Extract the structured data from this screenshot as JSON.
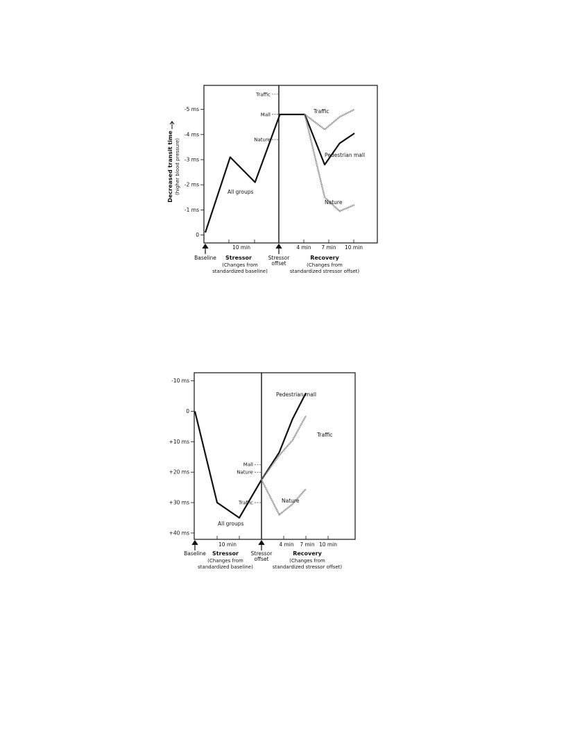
{
  "chart_data": [
    {
      "type": "line",
      "ylabel": "Decreased transit time",
      "ylabel_sub": "(higher blood pressure)",
      "yticks": [
        "-5 ms",
        "-4 ms",
        "-3 ms",
        "-2 ms",
        "-1 ms",
        "0"
      ],
      "ytick_values": [
        5,
        4,
        3,
        2,
        1,
        0
      ],
      "ylim": [
        0,
        6
      ],
      "xticks": [
        "10 min",
        "4 min",
        "7 min",
        "10 min"
      ],
      "phase_labels": {
        "baseline": "Baseline",
        "stressor": "Stressor",
        "stressor_sub1": "(Changes from",
        "stressor_sub2": "standardized baseline)",
        "offset1": "Stressor",
        "offset2": "offset",
        "recovery": "Recovery",
        "recovery_sub1": "(Changes from",
        "recovery_sub2": "standardized stressor offset)"
      },
      "offset_markers": [
        {
          "label": "Traffic",
          "value": 5.6
        },
        {
          "label": "Mall",
          "value": 4.8
        },
        {
          "label": "Nature",
          "value": 3.8
        }
      ],
      "stressor_series": {
        "name": "All groups",
        "x": [
          0,
          5,
          10,
          15,
          20
        ],
        "y": [
          0.1,
          3.1,
          2.1,
          4.8,
          4.8
        ]
      },
      "series": [
        {
          "name": "Traffic",
          "x": [
            20,
            24,
            27,
            30
          ],
          "y": [
            4.8,
            4.2,
            4.7,
            5.0
          ],
          "color": "#808080"
        },
        {
          "name": "Pedestrian mall",
          "x": [
            20,
            24,
            27,
            30
          ],
          "y": [
            4.8,
            2.8,
            3.65,
            4.05
          ],
          "color": "#111111"
        },
        {
          "name": "Nature",
          "x": [
            20,
            24,
            27,
            30
          ],
          "y": [
            4.8,
            1.5,
            0.95,
            1.2
          ],
          "color": "#808080"
        }
      ]
    },
    {
      "type": "line",
      "ylabel": "",
      "yticks": [
        "-10 ms",
        "0",
        "+10 ms",
        "+20 ms",
        "+30 ms",
        "+40 ms"
      ],
      "ytick_values": [
        -10,
        0,
        10,
        20,
        30,
        40
      ],
      "ylim": [
        -13,
        41
      ],
      "xticks": [
        "10 min",
        "4 min",
        "7 min",
        "10 min"
      ],
      "phase_labels": {
        "baseline": "Baseline",
        "stressor": "Stressor",
        "stressor_sub1": "(Changes from",
        "stressor_sub2": "standardized baseline)",
        "offset1": "Stressor",
        "offset2": "offset",
        "recovery": "Recovery",
        "recovery_sub1": "(Changes from",
        "recovery_sub2": "standardized stressor offset)"
      },
      "offset_markers": [
        {
          "label": "Mall",
          "value": 17.5
        },
        {
          "label": "Nature",
          "value": 20.0
        },
        {
          "label": "Traffic",
          "value": 30.0
        }
      ],
      "stressor_series": {
        "name": "All groups",
        "x": [
          0,
          5,
          10,
          15
        ],
        "y": [
          0,
          30,
          35,
          22.5
        ]
      },
      "series": [
        {
          "name": "Pedestrian mall",
          "x": [
            15,
            19,
            22,
            25
          ],
          "y": [
            22.5,
            13.5,
            2.5,
            -6
          ],
          "color": "#111111"
        },
        {
          "name": "Traffic",
          "x": [
            15,
            19,
            22,
            25
          ],
          "y": [
            22.5,
            14.5,
            9.5,
            1.5
          ],
          "color": "#808080"
        },
        {
          "name": "Nature",
          "x": [
            15,
            19,
            22,
            25
          ],
          "y": [
            22.5,
            34,
            30.5,
            25.5
          ],
          "color": "#808080"
        }
      ]
    }
  ]
}
